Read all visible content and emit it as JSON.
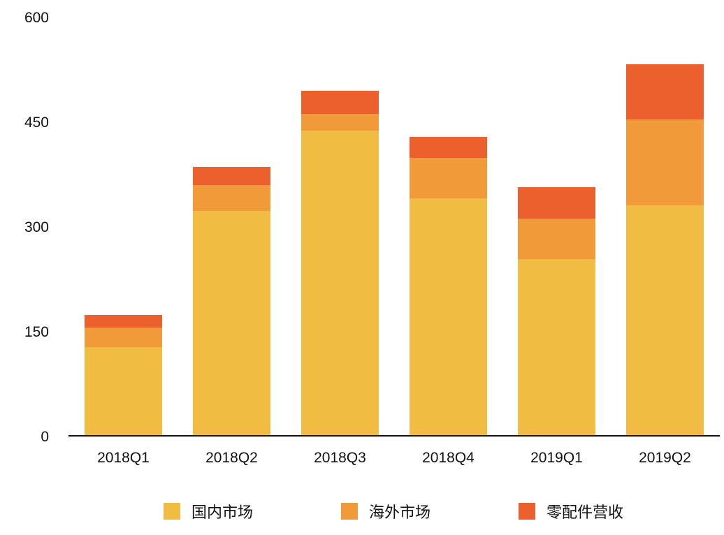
{
  "chart_data": {
    "type": "bar",
    "stacked": true,
    "categories": [
      "2018Q1",
      "2018Q2",
      "2018Q3",
      "2018Q4",
      "2019Q1",
      "2019Q2"
    ],
    "series": [
      {
        "name": "国内市场",
        "color": "#F0BC41",
        "values": [
          127,
          322,
          437,
          340,
          253,
          330
        ]
      },
      {
        "name": "海外市场",
        "color": "#F09A3A",
        "values": [
          28,
          37,
          24,
          58,
          58,
          123
        ]
      },
      {
        "name": "零配件营收",
        "color": "#EC602D",
        "values": [
          18,
          26,
          33,
          30,
          45,
          79
        ]
      }
    ],
    "yticks": [
      0,
      150,
      300,
      450,
      600
    ],
    "ylim": [
      0,
      600
    ],
    "grid": false,
    "legend_position": "bottom"
  }
}
